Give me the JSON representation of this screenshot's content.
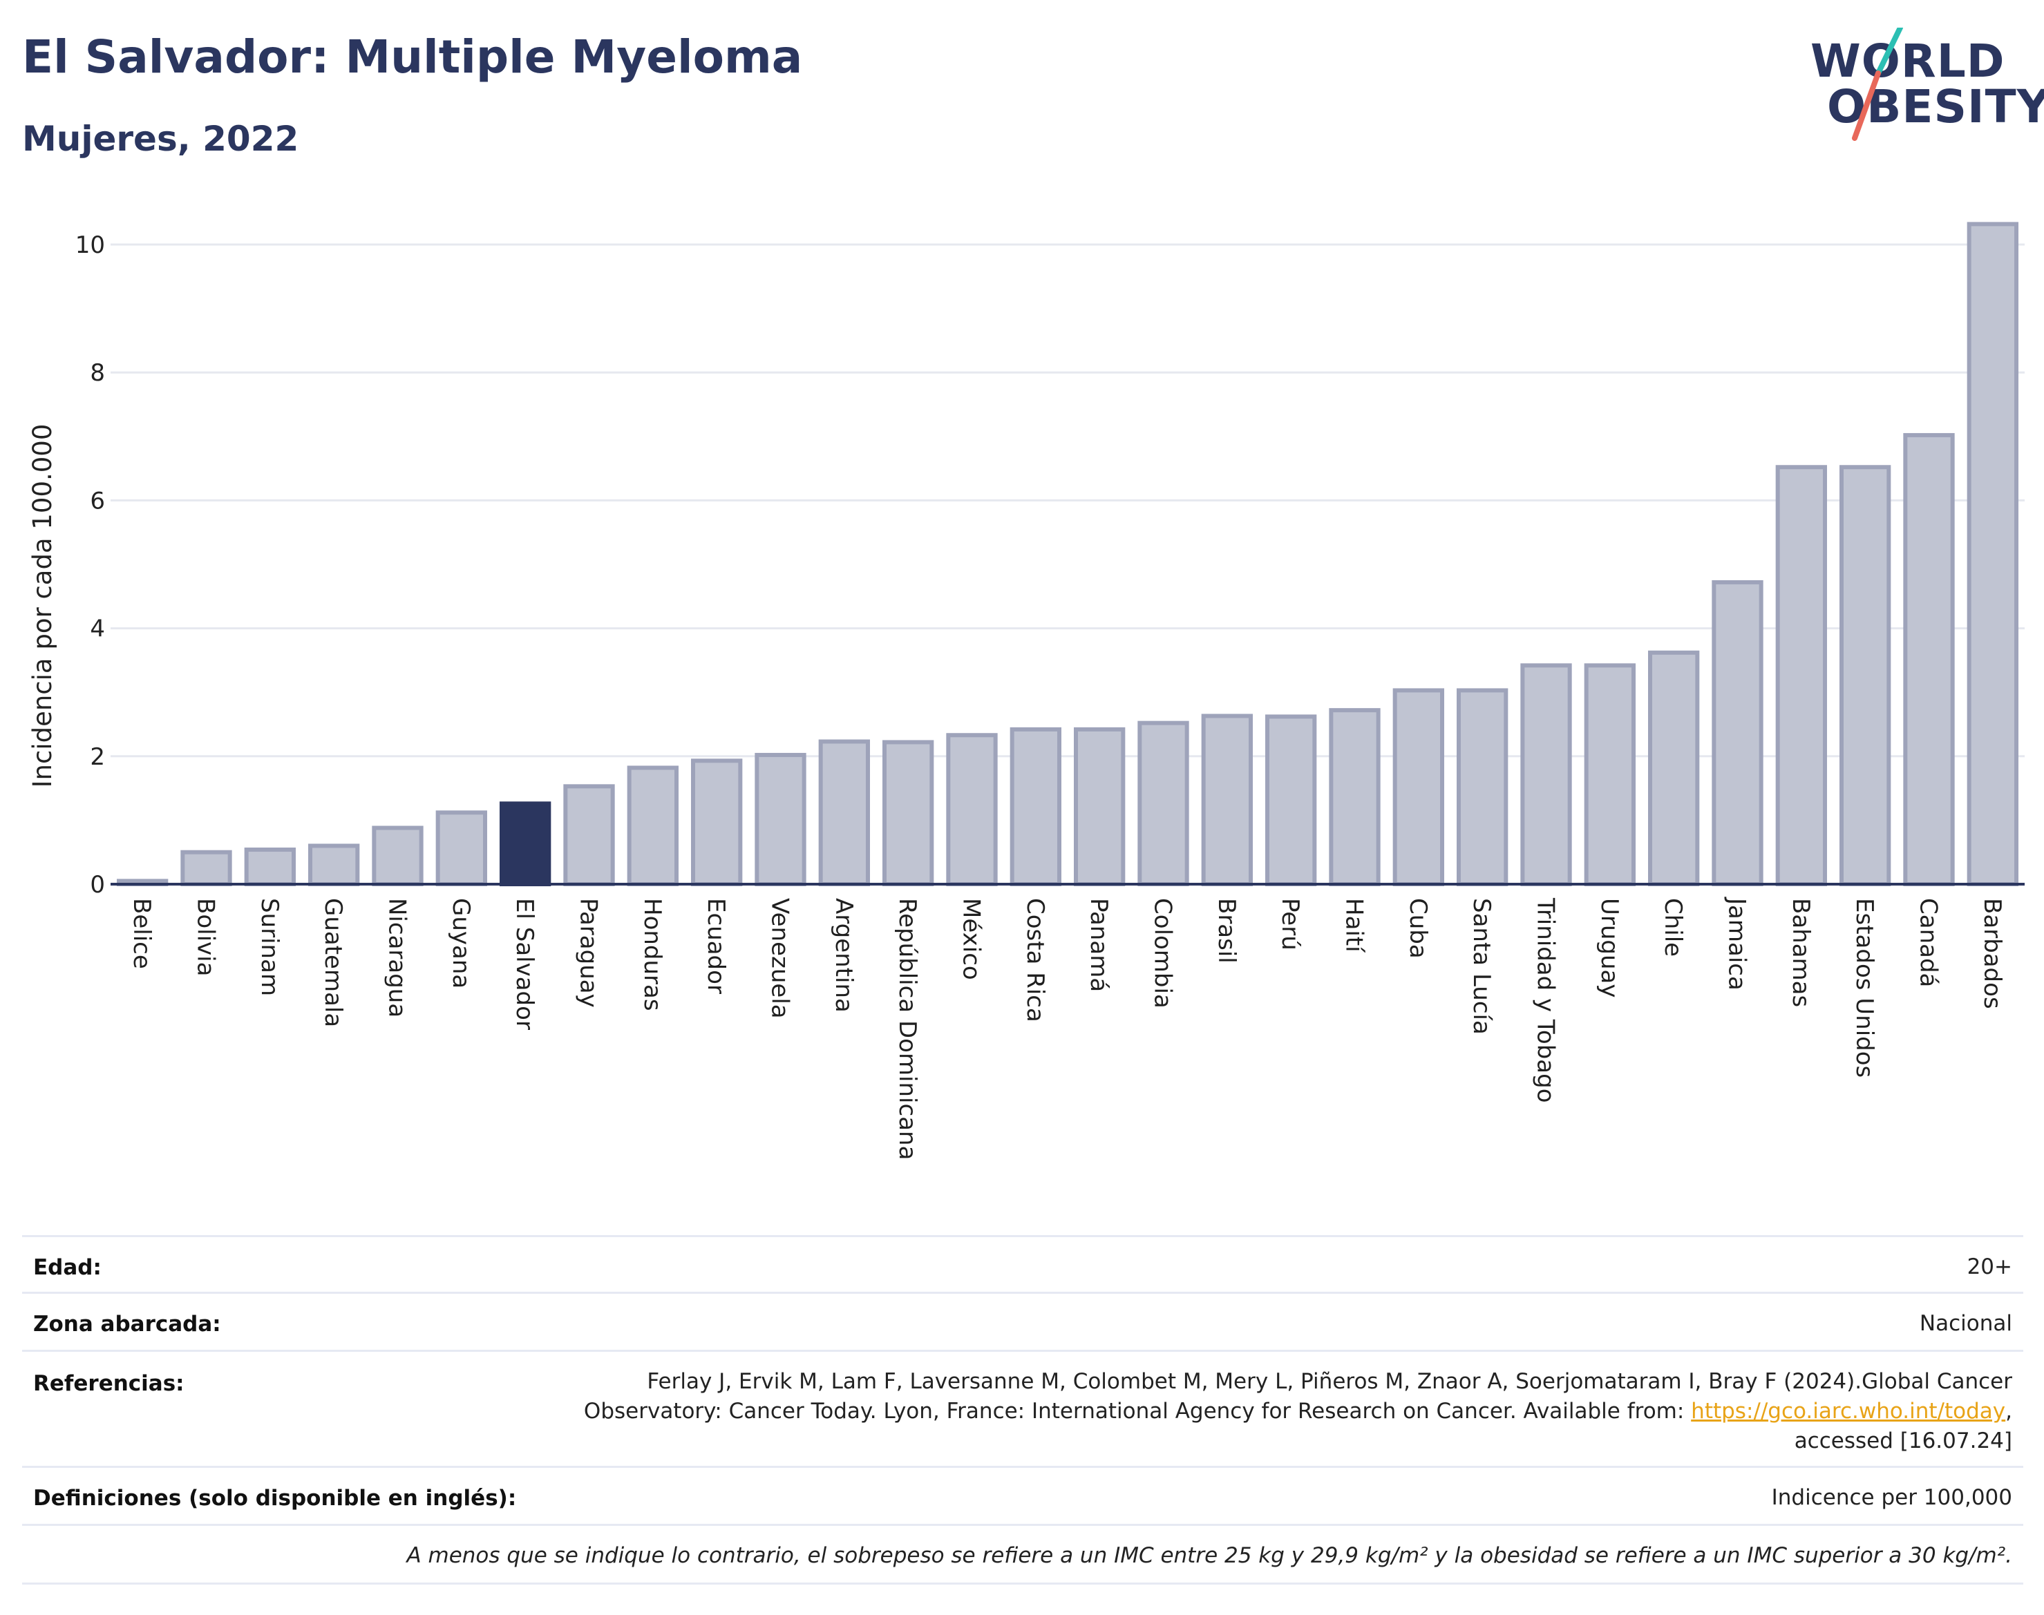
{
  "header": {
    "title": "El Salvador: Multiple Myeloma",
    "subtitle": "Mujeres, 2022"
  },
  "logo": {
    "line1": "WORLD",
    "line2": "OBESITY",
    "colors": {
      "text": "#2b365f",
      "slash_top": "#2bbfb3",
      "slash_bottom": "#e8685a"
    }
  },
  "chart_data": {
    "type": "bar",
    "ylabel": "Incidencia por cada 100.000",
    "xlabel": "",
    "ylim": [
      0,
      10.6
    ],
    "yticks": [
      0,
      2,
      4,
      6,
      8,
      10
    ],
    "grid": true,
    "highlight": "El Salvador",
    "colors": {
      "bar": "#c0c4d2",
      "bar_edge": "#9ea3ba",
      "highlight": "#2b365f",
      "grid": "#e6e8ef",
      "axis": "#2b365f"
    },
    "categories": [
      "Belice",
      "Bolivia",
      "Surinam",
      "Guatemala",
      "Nicaragua",
      "Guyana",
      "El Salvador",
      "Paraguay",
      "Honduras",
      "Ecuador",
      "Venezuela",
      "Argentina",
      "República Dominicana",
      "México",
      "Costa Rica",
      "Panamá",
      "Colombia",
      "Brasil",
      "Perú",
      "Haití",
      "Cuba",
      "Santa Lucía",
      "Trinidad y Tobago",
      "Uruguay",
      "Chile",
      "Jamaica",
      "Bahamas",
      "Estados Unidos",
      "Canadá",
      "Barbados"
    ],
    "values": [
      0.05,
      0.5,
      0.54,
      0.6,
      0.88,
      1.12,
      1.26,
      1.53,
      1.82,
      1.93,
      2.02,
      2.23,
      2.22,
      2.33,
      2.42,
      2.42,
      2.52,
      2.63,
      2.62,
      2.72,
      3.03,
      3.03,
      3.42,
      3.42,
      3.62,
      4.72,
      6.52,
      6.52,
      7.02,
      10.32
    ]
  },
  "meta": {
    "age_label": "Edad:",
    "age_value": "20+",
    "area_label": "Zona abarcada:",
    "area_value": "Nacional",
    "refs_label": "Referencias:",
    "refs_text_1": "Ferlay J, Ervik M, Lam F, Laversanne M, Colombet M, Mery L, Piñeros M, Znaor A, Soerjomataram I, Bray F (2024).Global Cancer",
    "refs_text_2": "Observatory: Cancer Today. Lyon, France: International Agency for Research on Cancer. Available from: ",
    "refs_link": "https://gco.iarc.who.int/today",
    "refs_text_3": ",",
    "refs_text_4": "accessed [16.07.24]",
    "defs_label": "Definiciones (solo disponible en inglés):",
    "defs_value": "Indicence per 100,000",
    "note": "A menos que se indique lo contrario, el sobrepeso se refiere a un IMC entre 25 kg y 29,9 kg/m² y la obesidad se refiere a un IMC superior a 30 kg/m²."
  }
}
